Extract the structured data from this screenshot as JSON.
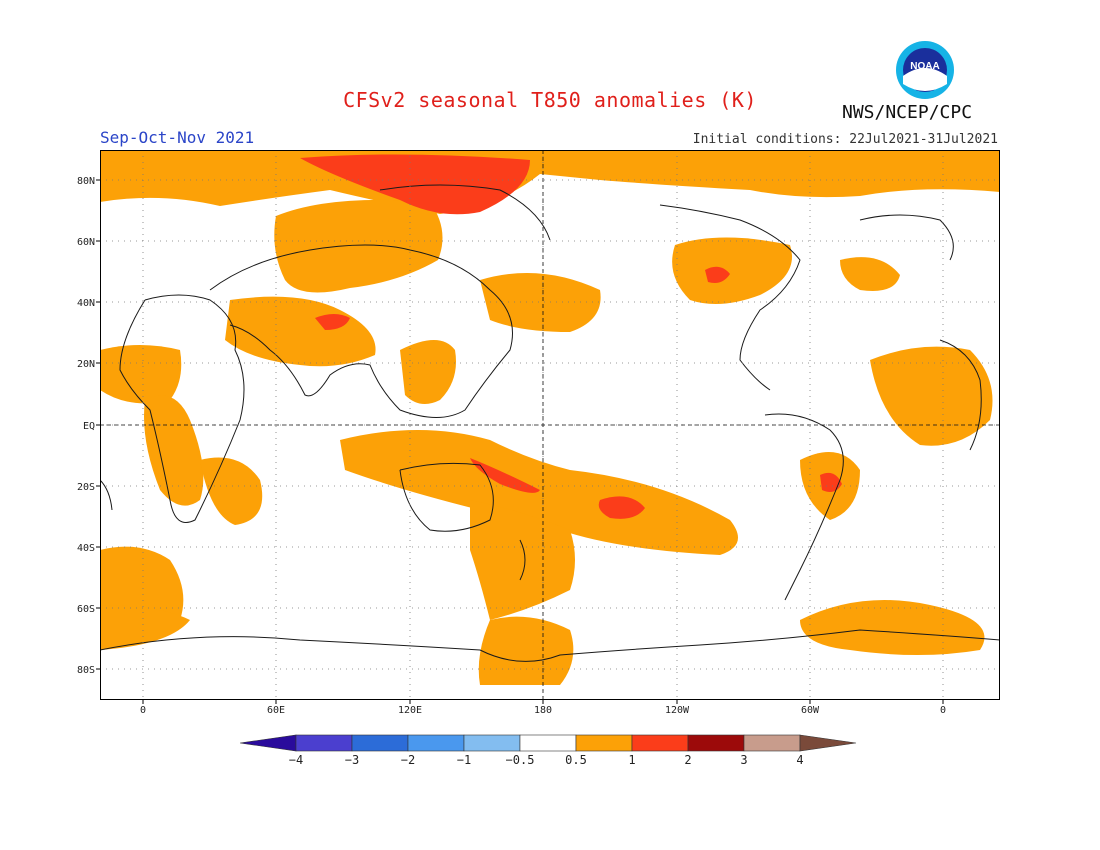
{
  "header": {
    "title": "CFSv2 seasonal T850 anomalies (K)",
    "season": "Sep-Oct-Nov 2021",
    "initial_conditions": "Initial conditions: 22Jul2021-31Jul2021",
    "agency": "NWS/NCEP/CPC",
    "logo_text": "NOAA"
  },
  "colors": {
    "band_0_5_to_1": "#fca107",
    "band_1_to_2": "#fb3d1a",
    "coast": "#1a1a1a",
    "grid": "#777777",
    "season_text": "#2b45c8",
    "title_text": "#e0201b"
  },
  "map": {
    "projection": "cylindrical equidistant, 0-360 longitude, centered on 180",
    "lat_labels": [
      "80N",
      "60N",
      "40N",
      "20N",
      "EQ",
      "20S",
      "40S",
      "60S",
      "80S"
    ],
    "lon_labels": [
      "0",
      "60E",
      "120E",
      "180",
      "120W",
      "60W",
      "0"
    ]
  },
  "colorbar": {
    "tick_labels": [
      "-4",
      "-3",
      "-2",
      "-1",
      "-0.5",
      "0.5",
      "1",
      "2",
      "3",
      "4"
    ],
    "colors": [
      "#2a0b9c",
      "#4b3fcf",
      "#2c6cd8",
      "#4a98ee",
      "#83bdf0",
      "#ffffff",
      "#fca107",
      "#fb3d1a",
      "#9c0a0a",
      "#c89c8c",
      "#7a4a3a"
    ]
  }
}
